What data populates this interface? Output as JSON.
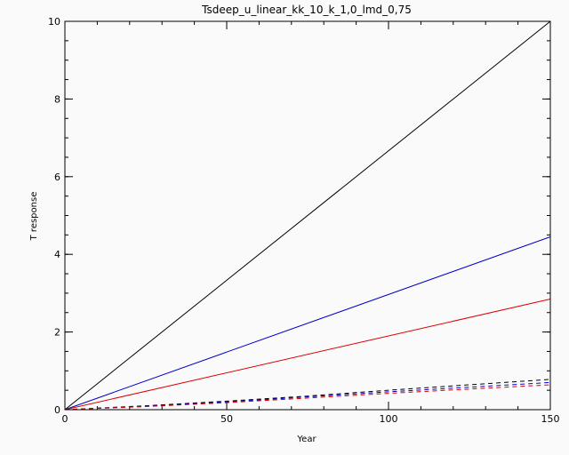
{
  "chart_data": {
    "type": "line",
    "title": "Tsdeep_u_linear_kk_10_k_1,0_lmd_0,75",
    "xlabel": "Year",
    "ylabel": "T response",
    "xlim": [
      0,
      150
    ],
    "ylim": [
      0,
      10
    ],
    "xticks": [
      0,
      50,
      100,
      150
    ],
    "yticks": [
      0,
      2,
      4,
      6,
      8,
      10
    ],
    "grid": false,
    "series": [
      {
        "color": "#000000",
        "style": "solid",
        "x": [
          0,
          150
        ],
        "y": [
          0,
          10
        ]
      },
      {
        "color": "#0000cc",
        "style": "solid",
        "x": [
          0,
          150
        ],
        "y": [
          0,
          4.45
        ]
      },
      {
        "color": "#dd0000",
        "style": "solid",
        "x": [
          0,
          150
        ],
        "y": [
          0,
          2.85
        ]
      },
      {
        "color": "#000000",
        "style": "dashed",
        "x": [
          0,
          25,
          50,
          75,
          100,
          125,
          150
        ],
        "y": [
          0,
          0.1,
          0.22,
          0.35,
          0.5,
          0.64,
          0.78
        ]
      },
      {
        "color": "#0000cc",
        "style": "dashed",
        "x": [
          0,
          25,
          50,
          75,
          100,
          125,
          150
        ],
        "y": [
          0,
          0.09,
          0.2,
          0.33,
          0.46,
          0.58,
          0.7
        ]
      },
      {
        "color": "#dd0000",
        "style": "dashed",
        "x": [
          0,
          25,
          50,
          75,
          100,
          125,
          150
        ],
        "y": [
          0,
          0.08,
          0.18,
          0.3,
          0.42,
          0.53,
          0.64
        ]
      }
    ]
  }
}
